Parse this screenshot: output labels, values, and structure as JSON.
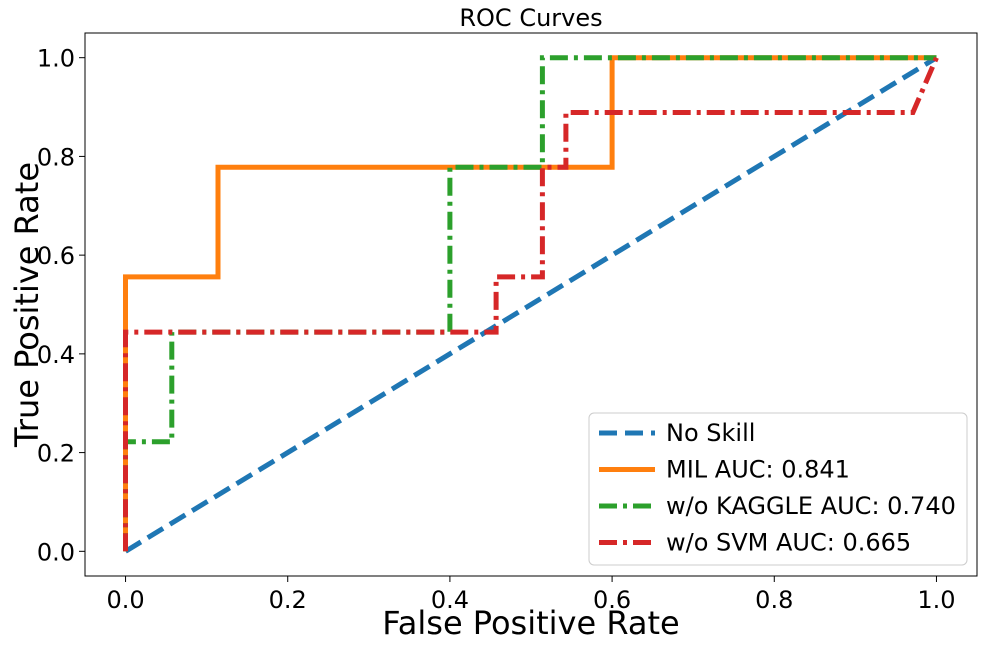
{
  "chart_data": {
    "type": "line",
    "title": "ROC Curves",
    "xlabel": "False Positive Rate",
    "ylabel": "True Positive Rate",
    "xlim": [
      -0.05,
      1.05
    ],
    "ylim": [
      -0.05,
      1.05
    ],
    "xticks": [
      0.0,
      0.2,
      0.4,
      0.6,
      0.8,
      1.0
    ],
    "yticks": [
      0.0,
      0.2,
      0.4,
      0.6,
      0.8,
      1.0
    ],
    "xtick_labels": [
      "0.0",
      "0.2",
      "0.4",
      "0.6",
      "0.8",
      "1.0"
    ],
    "ytick_labels": [
      "0.0",
      "0.2",
      "0.4",
      "0.6",
      "0.8",
      "1.0"
    ],
    "grid": false,
    "legend_position": "lower-right",
    "series": [
      {
        "name": "No Skill",
        "color": "#1f77b4",
        "linestyle": "dashed",
        "x": [
          0.0,
          1.0
        ],
        "y": [
          0.0,
          1.0
        ]
      },
      {
        "name": "MIL AUC: 0.841",
        "color": "#ff7f0e",
        "linestyle": "solid",
        "x": [
          0.0,
          0.0,
          0.114,
          0.114,
          0.6,
          0.6,
          1.0
        ],
        "y": [
          0.0,
          0.556,
          0.556,
          0.778,
          0.778,
          1.0,
          1.0
        ]
      },
      {
        "name": "w/o KAGGLE AUC: 0.740",
        "color": "#2ca02c",
        "linestyle": "dashdot",
        "x": [
          0.0,
          0.0,
          0.057,
          0.057,
          0.4,
          0.4,
          0.514,
          0.514,
          1.0
        ],
        "y": [
          0.0,
          0.222,
          0.222,
          0.444,
          0.444,
          0.778,
          0.778,
          1.0,
          1.0
        ]
      },
      {
        "name": "w/o SVM AUC: 0.665",
        "color": "#d62728",
        "linestyle": "dashdot",
        "x": [
          0.0,
          0.0,
          0.457,
          0.457,
          0.514,
          0.514,
          0.543,
          0.543,
          0.971,
          1.0
        ],
        "y": [
          0.0,
          0.444,
          0.444,
          0.556,
          0.556,
          0.778,
          0.778,
          0.889,
          0.889,
          1.0
        ]
      }
    ]
  }
}
